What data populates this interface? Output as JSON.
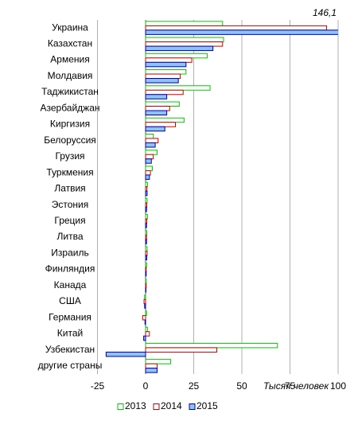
{
  "chart_data": {
    "type": "hbar",
    "categories": [
      "Украина",
      "Казахстан",
      "Армения",
      "Молдавия",
      "Таджикистан",
      "Азербайджан",
      "Киргизия",
      "Белоруссия",
      "Грузия",
      "Туркмения",
      "Латвия",
      "Эстония",
      "Греция",
      "Литва",
      "Израиль",
      "Финляндия",
      "Канада",
      "США",
      "Германия",
      "Китай",
      "Узбекистан",
      "другие страны"
    ],
    "series": [
      {
        "name": "2013",
        "color": "#00cc00",
        "fill": "#ffffff",
        "values": [
          40,
          40.5,
          32,
          21,
          33.5,
          17.5,
          20,
          4,
          6,
          3.5,
          1,
          0.8,
          1,
          0.6,
          0.8,
          0.5,
          0.3,
          -0.5,
          0.5,
          1,
          68.5,
          13
        ]
      },
      {
        "name": "2014",
        "color": "#cc0000",
        "fill": "#ffffff",
        "values": [
          94,
          40,
          24,
          18,
          19.5,
          12.5,
          15.5,
          6.5,
          4,
          2.5,
          0.7,
          0.6,
          0.6,
          0.5,
          0.8,
          0.3,
          0.3,
          -0.8,
          -1.5,
          2,
          37,
          6
        ]
      },
      {
        "name": "2015",
        "color": "#0000aa",
        "fill": "#8fc3f5",
        "values": [
          146.1,
          35,
          21,
          17,
          11,
          11,
          10,
          5,
          3,
          2,
          0.8,
          0.5,
          0.5,
          0.5,
          0.6,
          0.3,
          0.2,
          -0.5,
          -0.3,
          -1,
          -20.5,
          6
        ],
        "value_labels": [
          "146,1",
          null,
          null,
          null,
          null,
          null,
          null,
          null,
          null,
          null,
          null,
          null,
          null,
          null,
          null,
          null,
          null,
          null,
          null,
          null,
          null,
          null
        ]
      }
    ],
    "xlim": [
      -25,
      100
    ],
    "xticks": [
      -25,
      0,
      25,
      50,
      75,
      100
    ],
    "grid": true,
    "xlabel": "Тысяч человек",
    "legend": "bottom"
  }
}
